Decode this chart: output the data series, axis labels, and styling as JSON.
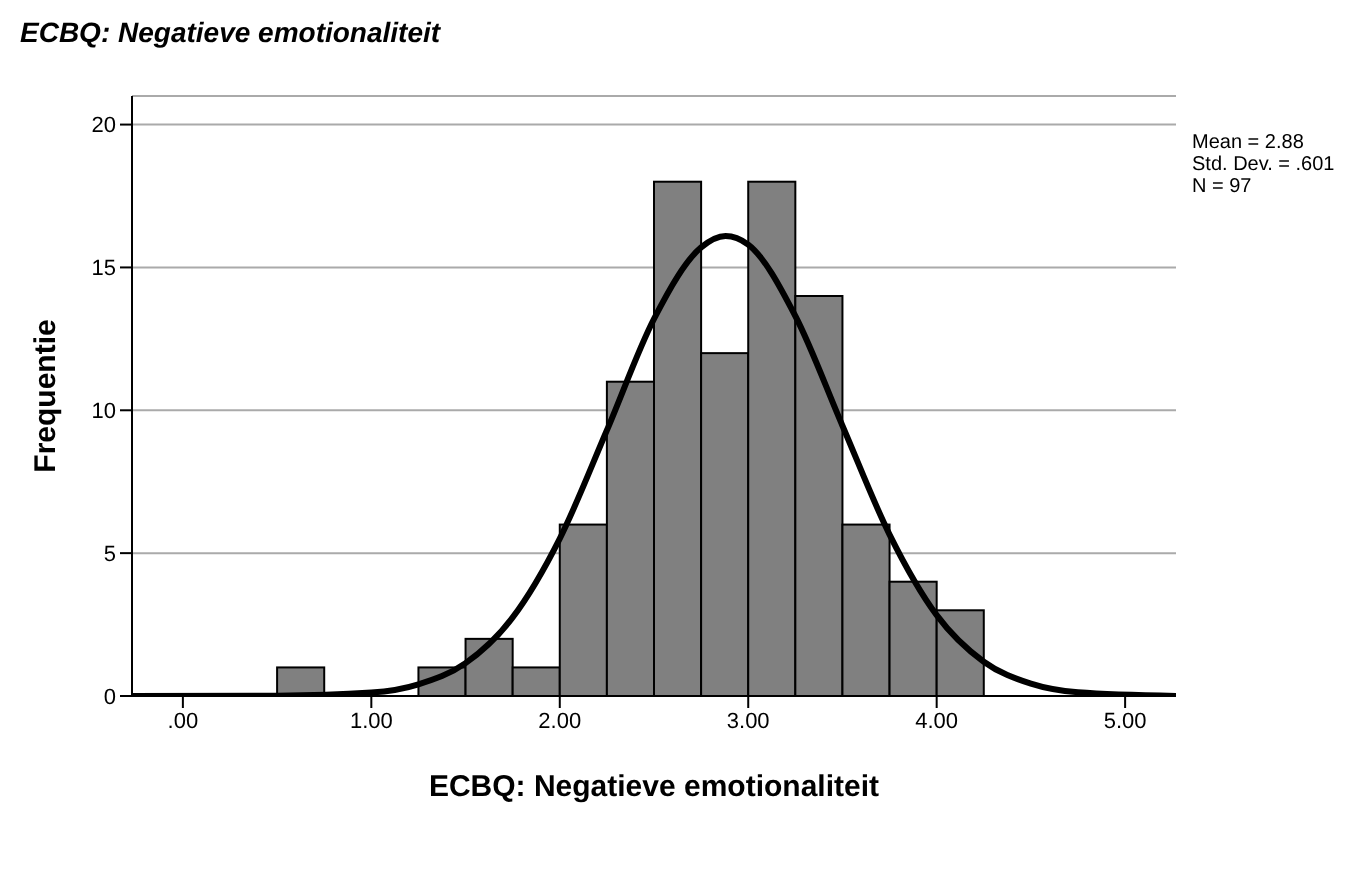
{
  "chart_data": {
    "type": "histogram",
    "title": "ECBQ: Negatieve emotionaliteit",
    "xlabel": "ECBQ: Negatieve emotionaliteit",
    "ylabel": "Frequentie",
    "bins": [
      0.5,
      0.75,
      1.0,
      1.25,
      1.5,
      1.75,
      2.0,
      2.25,
      2.5,
      2.75,
      3.0,
      3.25,
      3.5,
      3.75,
      4.0,
      4.25
    ],
    "values": [
      1,
      0,
      0,
      1,
      2,
      1,
      6,
      11,
      18,
      12,
      18,
      14,
      6,
      4,
      3
    ],
    "color": "#808080",
    "series": [
      {
        "type": "line",
        "color": "#000000",
        "x": [
          -0.27,
          0.5,
          1.0,
          1.25,
          1.5,
          1.75,
          2.0,
          2.25,
          2.5,
          2.75,
          2.88,
          3.0,
          3.25,
          3.5,
          3.75,
          4.0,
          4.25,
          4.5,
          4.75,
          5.27
        ],
        "values": [
          0,
          0.01,
          0.12,
          0.41,
          1.15,
          2.75,
          5.51,
          9.3,
          13.2,
          15.7,
          16.1,
          15.8,
          13.3,
          9.46,
          5.65,
          2.83,
          1.2,
          0.43,
          0.13,
          0
        ]
      }
    ],
    "annotations": [
      "Mean = 2.88",
      "Std. Dev. = .601",
      "N = 97"
    ],
    "xlim": [
      -0.27,
      5.27
    ],
    "xticks": [
      {
        "value": 0,
        "label": ".00"
      },
      {
        "value": 1,
        "label": "1.00"
      },
      {
        "value": 2,
        "label": "2.00"
      },
      {
        "value": 3,
        "label": "3.00"
      },
      {
        "value": 4,
        "label": "4.00"
      },
      {
        "value": 5,
        "label": "5.00"
      }
    ],
    "ylim": [
      0,
      21
    ],
    "yticks": [
      0,
      5,
      10,
      15,
      20
    ],
    "grid": "y",
    "marker": "none",
    "line_style": "solid",
    "legend": false
  }
}
